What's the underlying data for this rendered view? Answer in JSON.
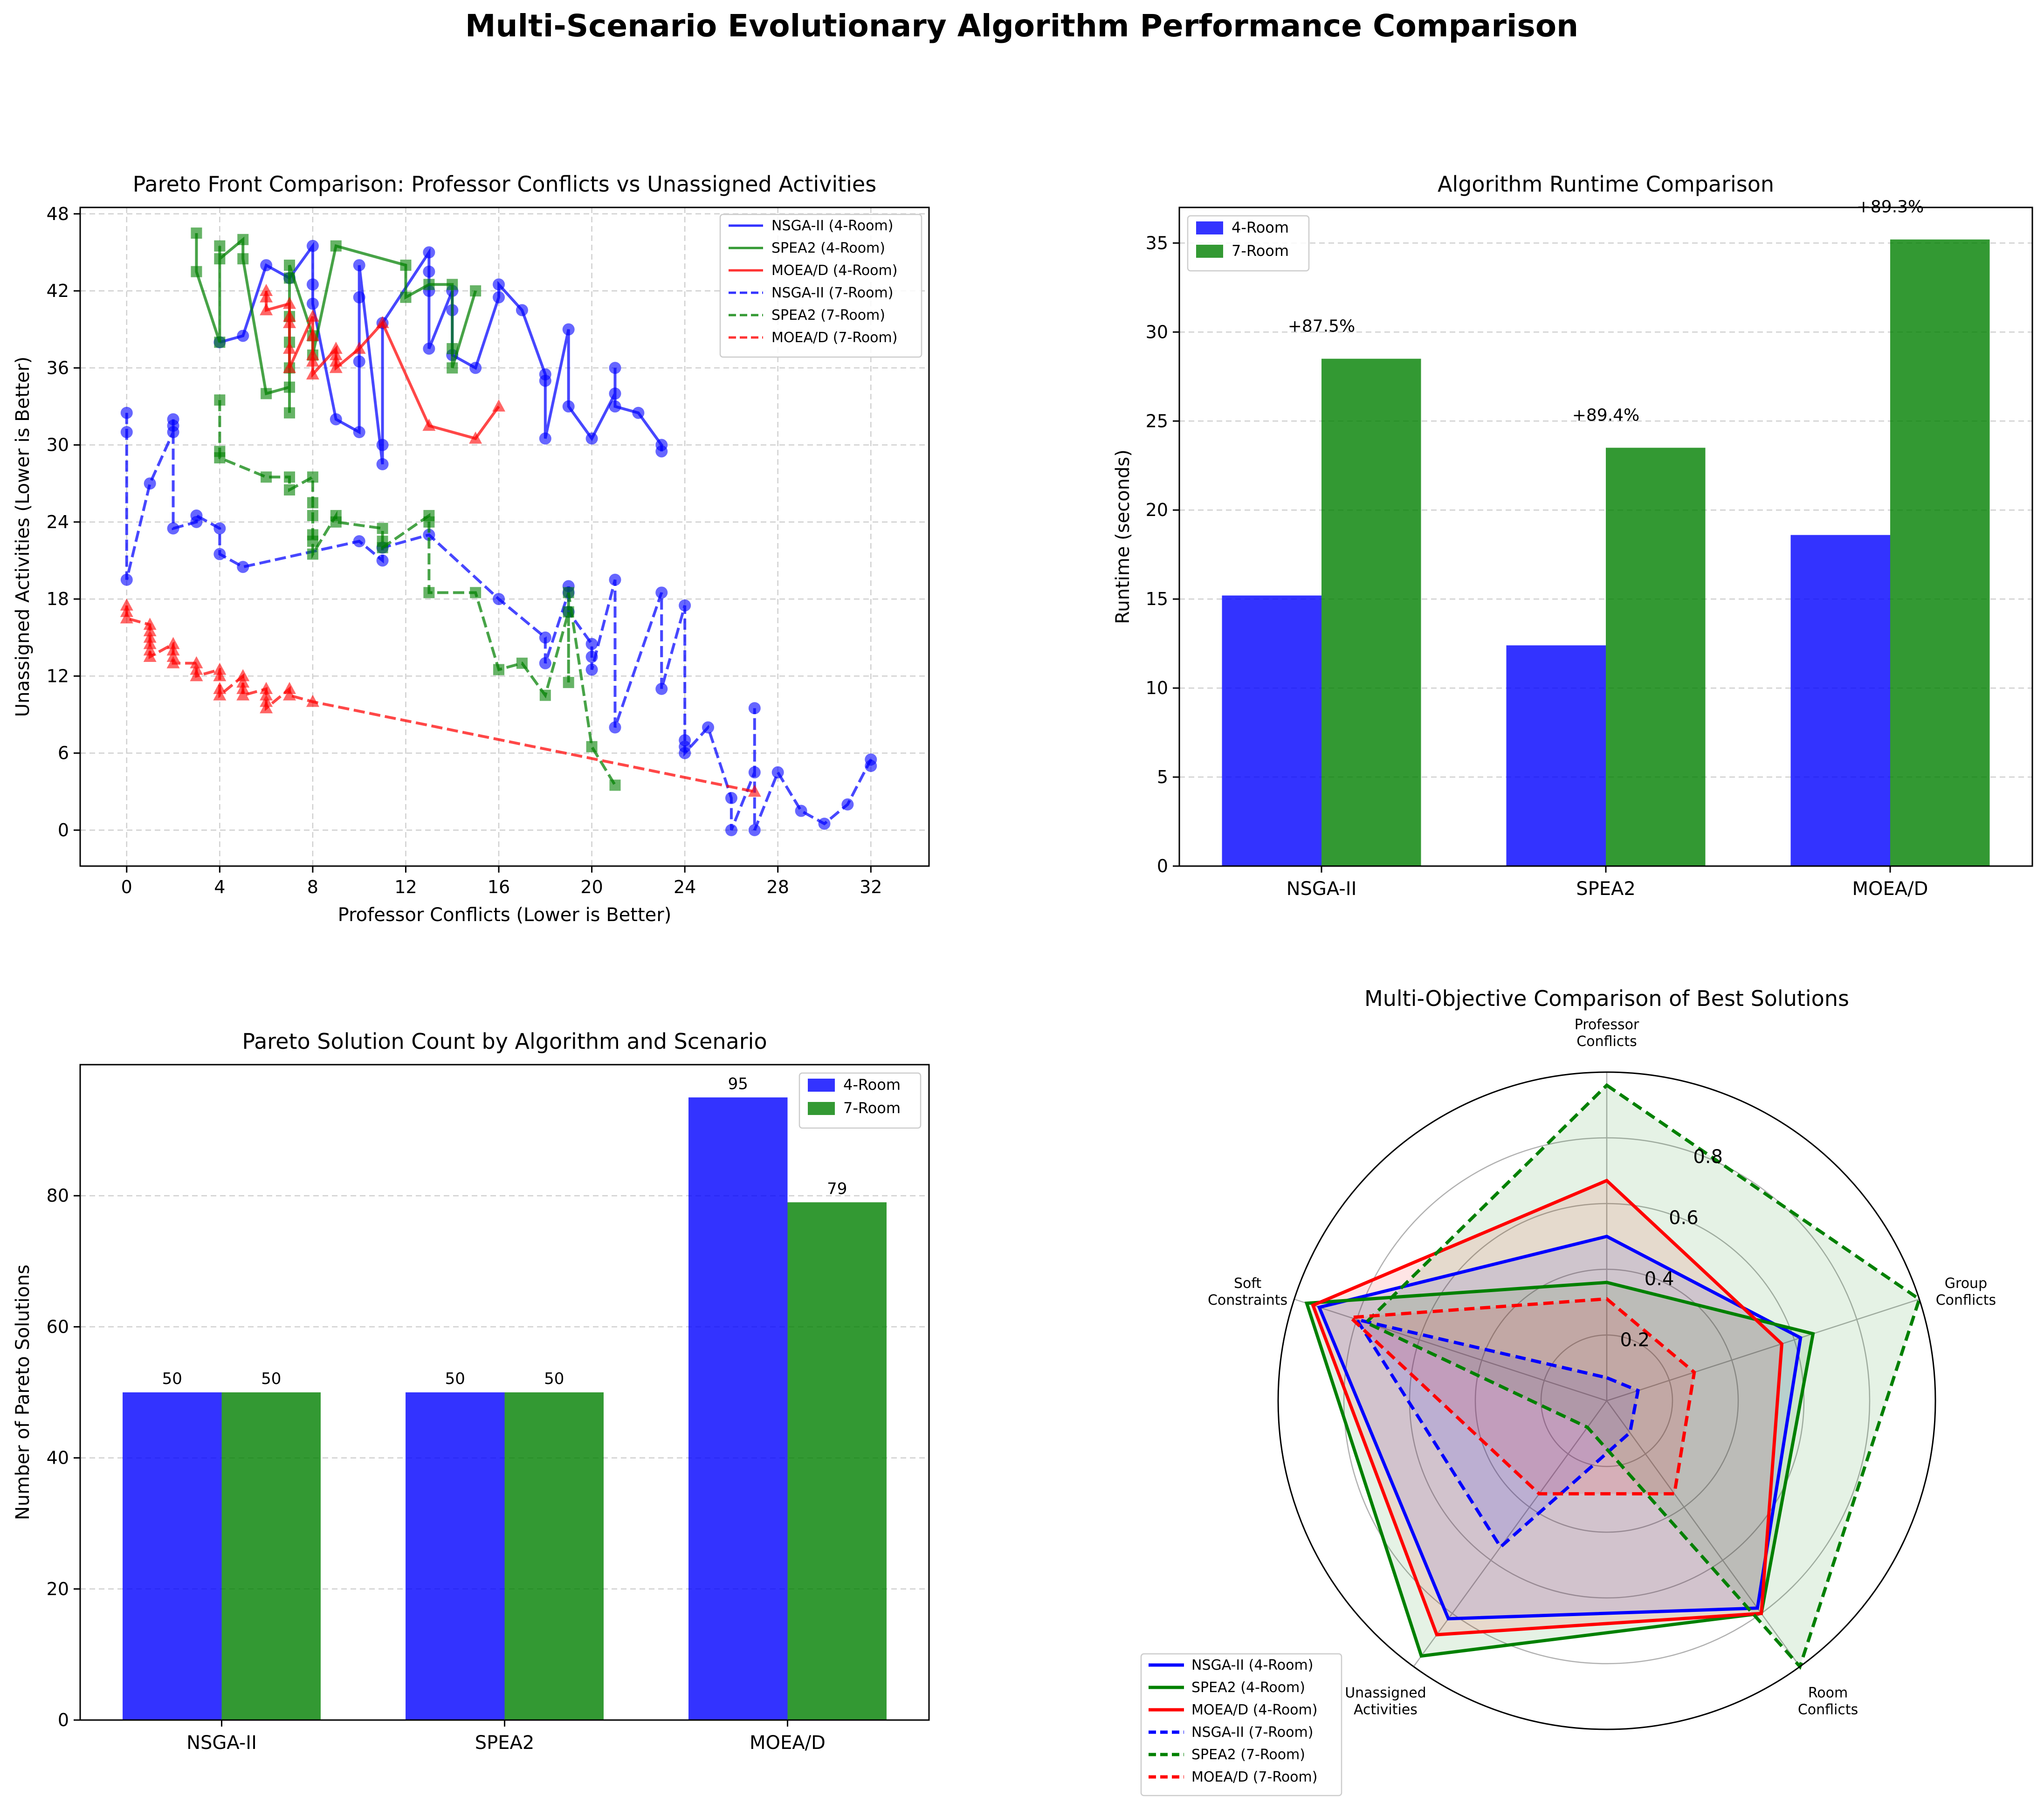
{
  "suptitle": "Multi-Scenario Evolutionary Algorithm Performance Comparison",
  "colors": {
    "blue": "#0000ff",
    "green": "#008000",
    "red": "#ff0000",
    "grid": "#d0d0d0"
  },
  "chart_data": [
    {
      "type": "scatter",
      "title": "Pareto Front Comparison: Professor Conflicts vs Unassigned Activities",
      "xlabel": "Professor Conflicts (Lower is Better)",
      "ylabel": "Unassigned Activities (Lower is Better)",
      "xlim": [
        -2,
        34.5
      ],
      "ylim": [
        -2.8,
        48.5
      ],
      "xticks": [
        0,
        4,
        8,
        12,
        16,
        20,
        24,
        28,
        32
      ],
      "yticks": [
        0,
        6,
        12,
        18,
        24,
        30,
        36,
        42,
        48
      ],
      "grid": true,
      "legend_position": "top-right",
      "series": [
        {
          "name": "NSGA-II (4-Room)",
          "color": "#0000ff",
          "dash": "solid",
          "marker": "circle",
          "points": [
            [
              4,
              38
            ],
            [
              5,
              38.5
            ],
            [
              6,
              44
            ],
            [
              7,
              43
            ],
            [
              8,
              45.5
            ],
            [
              8,
              42.5
            ],
            [
              8,
              41
            ],
            [
              9,
              32
            ],
            [
              10,
              31
            ],
            [
              10,
              36.5
            ],
            [
              10,
              41.5
            ],
            [
              10,
              44
            ],
            [
              11,
              28.5
            ],
            [
              11,
              30
            ],
            [
              11,
              39.5
            ],
            [
              13,
              45
            ],
            [
              13,
              43.5
            ],
            [
              13,
              42
            ],
            [
              13,
              37.5
            ],
            [
              14,
              42
            ],
            [
              14,
              40.5
            ],
            [
              14,
              37
            ],
            [
              15,
              36
            ],
            [
              16,
              41.5
            ],
            [
              16,
              42.5
            ],
            [
              17,
              40.5
            ],
            [
              18,
              35.5
            ],
            [
              18,
              35
            ],
            [
              18,
              30.5
            ],
            [
              19,
              39
            ],
            [
              19,
              33
            ],
            [
              20,
              30.5
            ],
            [
              21,
              34
            ],
            [
              21,
              36
            ],
            [
              21,
              33
            ],
            [
              22,
              32.5
            ],
            [
              23,
              30
            ],
            [
              23,
              29.5
            ]
          ]
        },
        {
          "name": "SPEA2 (4-Room)",
          "color": "#008000",
          "dash": "solid",
          "marker": "square",
          "points": [
            [
              3,
              46.5
            ],
            [
              3,
              43.5
            ],
            [
              4,
              38
            ],
            [
              4,
              45.5
            ],
            [
              4,
              44.5
            ],
            [
              5,
              46
            ],
            [
              5,
              44.5
            ],
            [
              6,
              34
            ],
            [
              7,
              34.5
            ],
            [
              7,
              32.5
            ],
            [
              7,
              36
            ],
            [
              7,
              38
            ],
            [
              7,
              40
            ],
            [
              7,
              43
            ],
            [
              7,
              44
            ],
            [
              8,
              38.5
            ],
            [
              8,
              37
            ],
            [
              9,
              45.5
            ],
            [
              12,
              44
            ],
            [
              12,
              41.5
            ],
            [
              13,
              42.5
            ],
            [
              14,
              42.5
            ],
            [
              14,
              37.5
            ],
            [
              14,
              36
            ],
            [
              15,
              42
            ]
          ]
        },
        {
          "name": "MOEA/D (4-Room)",
          "color": "#ff0000",
          "dash": "solid",
          "marker": "triangle",
          "points": [
            [
              6,
              42
            ],
            [
              6,
              41.5
            ],
            [
              6,
              40.5
            ],
            [
              7,
              41
            ],
            [
              7,
              40
            ],
            [
              7,
              39.5
            ],
            [
              7,
              37.5
            ],
            [
              7,
              36
            ],
            [
              8,
              40
            ],
            [
              8,
              38.5
            ],
            [
              8,
              37
            ],
            [
              8,
              36.5
            ],
            [
              8,
              35.5
            ],
            [
              9,
              37.5
            ],
            [
              9,
              37
            ],
            [
              9,
              36.5
            ],
            [
              9,
              36
            ],
            [
              10,
              37.5
            ],
            [
              11,
              39.5
            ],
            [
              13,
              31.5
            ],
            [
              15,
              30.5
            ],
            [
              16,
              33
            ]
          ]
        },
        {
          "name": "NSGA-II (7-Room)",
          "color": "#0000ff",
          "dash": "dashed",
          "marker": "circle",
          "points": [
            [
              0,
              32.5
            ],
            [
              0,
              31
            ],
            [
              0,
              19.5
            ],
            [
              1,
              27
            ],
            [
              2,
              31
            ],
            [
              2,
              31.5
            ],
            [
              2,
              32
            ],
            [
              2,
              23.5
            ],
            [
              3,
              24
            ],
            [
              3,
              24.5
            ],
            [
              4,
              23.5
            ],
            [
              4,
              21.5
            ],
            [
              5,
              20.5
            ],
            [
              10,
              22.5
            ],
            [
              11,
              21
            ],
            [
              11,
              22
            ],
            [
              13,
              23
            ],
            [
              16,
              18
            ],
            [
              18,
              15
            ],
            [
              18,
              13
            ],
            [
              19,
              18.5
            ],
            [
              19,
              19
            ],
            [
              19,
              17
            ],
            [
              20,
              14.5
            ],
            [
              20,
              13.5
            ],
            [
              20,
              12.5
            ],
            [
              21,
              19.5
            ],
            [
              21,
              8
            ],
            [
              23,
              18.5
            ],
            [
              23,
              11
            ],
            [
              24,
              17.5
            ],
            [
              24,
              7
            ],
            [
              24,
              6.5
            ],
            [
              24,
              6
            ],
            [
              25,
              8
            ],
            [
              26,
              2.5
            ],
            [
              26,
              0
            ],
            [
              27,
              4.5
            ],
            [
              27,
              9.5
            ],
            [
              27,
              0
            ],
            [
              28,
              4.5
            ],
            [
              29,
              1.5
            ],
            [
              30,
              0.5
            ],
            [
              31,
              2
            ],
            [
              32,
              5.5
            ],
            [
              32,
              5
            ]
          ]
        },
        {
          "name": "SPEA2 (7-Room)",
          "color": "#008000",
          "dash": "dashed",
          "marker": "square",
          "points": [
            [
              4,
              33.5
            ],
            [
              4,
              29.5
            ],
            [
              4,
              29
            ],
            [
              6,
              27.5
            ],
            [
              7,
              27.5
            ],
            [
              7,
              26.5
            ],
            [
              8,
              27.5
            ],
            [
              8,
              25.5
            ],
            [
              8,
              24.5
            ],
            [
              8,
              23
            ],
            [
              8,
              22.5
            ],
            [
              8,
              21.5
            ],
            [
              9,
              24.5
            ],
            [
              9,
              24
            ],
            [
              11,
              23.5
            ],
            [
              11,
              22.5
            ],
            [
              11,
              22
            ],
            [
              13,
              24.5
            ],
            [
              13,
              24
            ],
            [
              13,
              18.5
            ],
            [
              15,
              18.5
            ],
            [
              16,
              12.5
            ],
            [
              17,
              13
            ],
            [
              18,
              10.5
            ],
            [
              19,
              17
            ],
            [
              19,
              11.5
            ],
            [
              19,
              18.5
            ],
            [
              20,
              6.5
            ],
            [
              21,
              3.5
            ]
          ]
        },
        {
          "name": "MOEA/D (7-Room)",
          "color": "#ff0000",
          "dash": "dashed",
          "marker": "triangle",
          "points": [
            [
              0,
              17.5
            ],
            [
              0,
              17
            ],
            [
              0,
              16.5
            ],
            [
              1,
              16
            ],
            [
              1,
              15.5
            ],
            [
              1,
              15
            ],
            [
              1,
              14.5
            ],
            [
              1,
              14
            ],
            [
              1,
              13.5
            ],
            [
              2,
              14.5
            ],
            [
              2,
              14
            ],
            [
              2,
              13.5
            ],
            [
              2,
              13
            ],
            [
              3,
              13
            ],
            [
              3,
              12.5
            ],
            [
              3,
              12
            ],
            [
              4,
              12.5
            ],
            [
              4,
              12
            ],
            [
              4,
              11
            ],
            [
              4,
              10.5
            ],
            [
              5,
              12
            ],
            [
              5,
              11.5
            ],
            [
              5,
              11
            ],
            [
              5,
              10.5
            ],
            [
              6,
              11
            ],
            [
              6,
              10.5
            ],
            [
              6,
              10
            ],
            [
              6,
              9.5
            ],
            [
              7,
              11
            ],
            [
              7,
              10.5
            ],
            [
              8,
              10
            ],
            [
              27,
              3
            ]
          ]
        }
      ]
    },
    {
      "type": "bar",
      "title": "Algorithm Runtime Comparison",
      "xlabel": "",
      "ylabel": "Runtime (seconds)",
      "ylim": [
        0,
        37
      ],
      "yticks": [
        0,
        5,
        10,
        15,
        20,
        25,
        30,
        35
      ],
      "categories": [
        "NSGA-II",
        "SPEA2",
        "MOEA/D"
      ],
      "series": [
        {
          "name": "4-Room",
          "color": "#0000ff",
          "values": [
            15.2,
            12.4,
            18.6
          ]
        },
        {
          "name": "7-Room",
          "color": "#008000",
          "values": [
            28.5,
            23.5,
            35.2
          ]
        }
      ],
      "annotations": [
        "+87.5%",
        "+89.4%",
        "+89.3%"
      ],
      "grid": true,
      "legend_position": "top-left"
    },
    {
      "type": "bar",
      "title": "Pareto Solution Count by Algorithm and Scenario",
      "xlabel": "",
      "ylabel": "Number of Pareto Solutions",
      "ylim": [
        0,
        100
      ],
      "yticks": [
        0,
        20,
        40,
        60,
        80
      ],
      "categories": [
        "NSGA-II",
        "SPEA2",
        "MOEA/D"
      ],
      "series": [
        {
          "name": "4-Room",
          "color": "#0000ff",
          "values": [
            50,
            50,
            95
          ]
        },
        {
          "name": "7-Room",
          "color": "#008000",
          "values": [
            50,
            50,
            79
          ]
        }
      ],
      "value_labels": true,
      "grid": true,
      "legend_position": "top-right"
    },
    {
      "type": "radar",
      "title": "Multi-Objective Comparison of Best Solutions",
      "axes": [
        "Professor\nConflicts",
        "Group\nConflicts",
        "Room\nConflicts",
        "Unassigned\nActivities",
        "Soft\nConstraints"
      ],
      "rlim": [
        0,
        1
      ],
      "rticks": [
        0.2,
        0.4,
        0.6,
        0.8
      ],
      "legend_position": "bottom-left",
      "series": [
        {
          "name": "NSGA-II (4-Room)",
          "color": "#0000ff",
          "dash": "solid",
          "values": [
            0.5,
            0.62,
            0.78,
            0.82,
            0.92
          ]
        },
        {
          "name": "SPEA2 (4-Room)",
          "color": "#008000",
          "dash": "solid",
          "values": [
            0.36,
            0.66,
            0.8,
            0.96,
            0.96
          ]
        },
        {
          "name": "MOEA/D (4-Room)",
          "color": "#ff0000",
          "dash": "solid",
          "values": [
            0.67,
            0.56,
            0.8,
            0.88,
            0.94
          ]
        },
        {
          "name": "NSGA-II (7-Room)",
          "color": "#0000ff",
          "dash": "dashed",
          "values": [
            0.07,
            0.1,
            0.12,
            0.55,
            0.8
          ]
        },
        {
          "name": "SPEA2 (7-Room)",
          "color": "#008000",
          "dash": "dashed",
          "values": [
            0.96,
            1.0,
            1.0,
            0.1,
            0.77
          ]
        },
        {
          "name": "MOEA/D (7-Room)",
          "color": "#ff0000",
          "dash": "dashed",
          "values": [
            0.31,
            0.28,
            0.35,
            0.35,
            0.82
          ]
        }
      ]
    }
  ]
}
